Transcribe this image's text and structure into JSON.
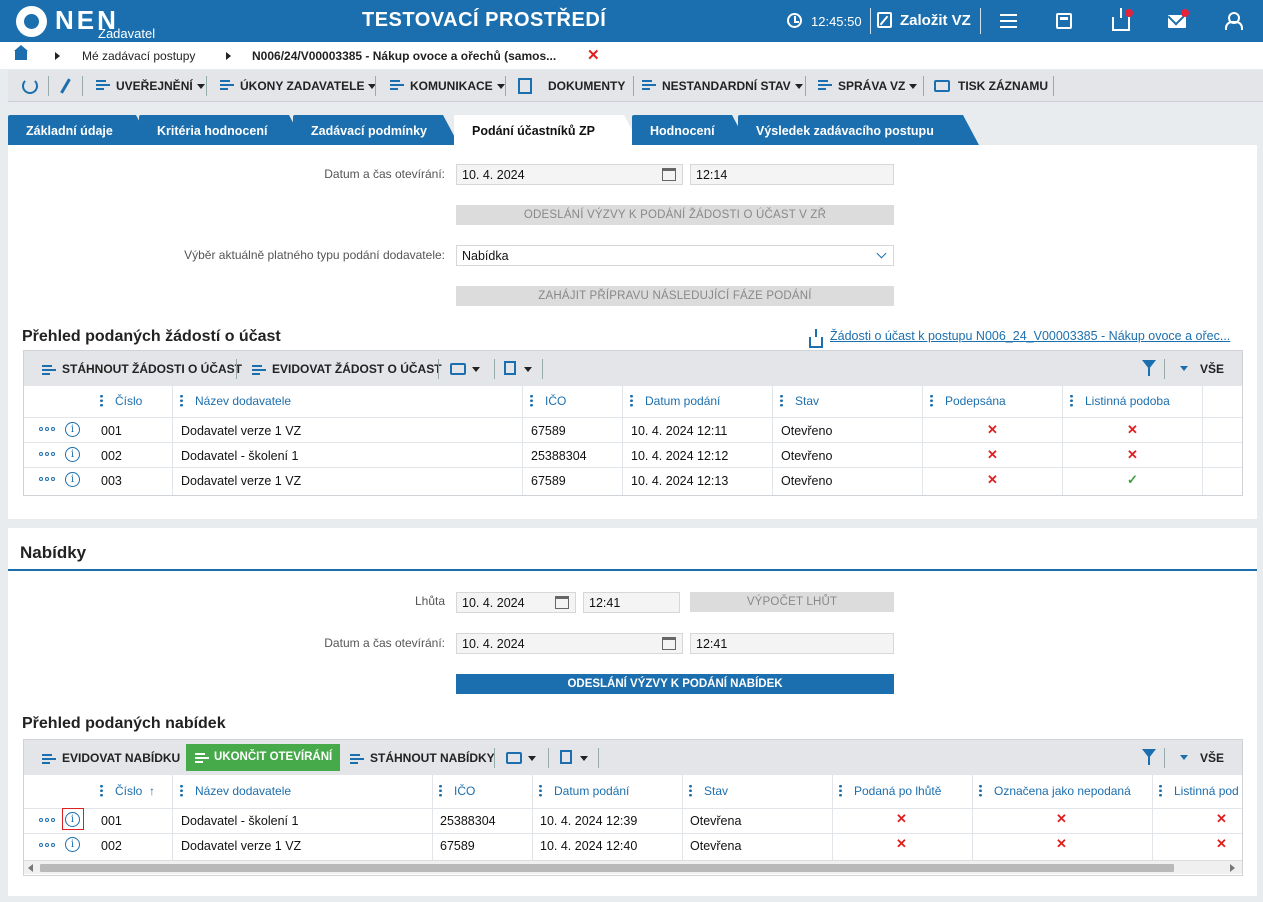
{
  "topbar": {
    "logo_text": "NEN",
    "logo_sub": "Zadavatel",
    "environment": "TESTOVACÍ PROSTŘEDÍ",
    "clock": "12:45:50",
    "create_label": "Založit VZ",
    "accent": "#1c6fae"
  },
  "breadcrumb": {
    "items": [
      "Mé zadávací postupy",
      "N006/24/V00003385 - Nákup ovoce a ořechů (samos..."
    ]
  },
  "actionbar": {
    "items": [
      "UVEŘEJNĚNÍ",
      "ÚKONY ZADAVATELE",
      "KOMUNIKACE",
      "DOKUMENTY",
      "NESTANDARDNÍ STAV",
      "SPRÁVA VZ",
      "TISK ZÁZNAMU"
    ]
  },
  "tabs": [
    "Základní údaje",
    "Kritéria hodnocení",
    "Zadávací podmínky",
    "Podání účastníků ZP",
    "Hodnocení",
    "Výsledek zadávacího postupu"
  ],
  "section1": {
    "open_label": "Datum a čas otevírání:",
    "open_date": "10. 4. 2024",
    "open_time": "12:14",
    "btn_send_invite": "ODESLÁNÍ VÝZVY K PODÁNÍ ŽÁDOSTI O ÚČAST V ZŘ",
    "type_label": "Výběr aktuálně platného typu podání dodavatele:",
    "type_value": "Nabídka",
    "btn_next_phase": "ZAHÁJIT PŘÍPRAVU NÁSLEDUJÍCÍ FÁZE PODÁNÍ",
    "title": "Přehled podaných žádostí o účast",
    "link": "Žádosti o účast k postupu N006_24_V00003385 - Nákup ovoce a ořec...",
    "toolbar": {
      "download": "STÁHNOUT ŽÁDOSTI O ÚČAST",
      "register": "EVIDOVAT ŽÁDOST O ÚČAST",
      "all": "VŠE"
    },
    "columns": [
      "Číslo",
      "Název dodavatele",
      "IČO",
      "Datum podání",
      "Stav",
      "Podepsána",
      "Listinná podoba"
    ],
    "rows": [
      {
        "cislo": "001",
        "nazev": "Dodavatel verze 1 VZ",
        "ico": "67589",
        "datum": "10. 4. 2024 12:11",
        "stav": "Otevřeno",
        "podepsana": "✕",
        "listinna": "✕"
      },
      {
        "cislo": "002",
        "nazev": "Dodavatel - školení 1",
        "ico": "25388304",
        "datum": "10. 4. 2024 12:12",
        "stav": "Otevřeno",
        "podepsana": "✕",
        "listinna": "✕"
      },
      {
        "cislo": "003",
        "nazev": "Dodavatel verze 1 VZ",
        "ico": "67589",
        "datum": "10. 4. 2024 12:13",
        "stav": "Otevřeno",
        "podepsana": "✕",
        "listinna": "✓"
      }
    ]
  },
  "section2": {
    "heading": "Nabídky",
    "deadline_label": "Lhůta",
    "deadline_date": "10. 4. 2024",
    "deadline_time": "12:41",
    "btn_calc": "VÝPOČET LHŮT",
    "open_label": "Datum a čas otevírání:",
    "open_date": "10. 4. 2024",
    "open_time": "12:41",
    "btn_send": "ODESLÁNÍ VÝZVY K PODÁNÍ NABÍDEK",
    "title": "Přehled podaných nabídek",
    "toolbar": {
      "register": "EVIDOVAT NABÍDKU",
      "finish": "UKONČIT OTEVÍRÁNÍ",
      "download": "STÁHNOUT NABÍDKY",
      "all": "VŠE"
    },
    "columns": [
      "Číslo",
      "Název dodavatele",
      "IČO",
      "Datum podání",
      "Stav",
      "Podaná po lhůtě",
      "Označena jako nepodaná",
      "Listinná pod"
    ],
    "sort_indicator": "↑",
    "rows": [
      {
        "cislo": "001",
        "nazev": "Dodavatel - školení 1",
        "ico": "25388304",
        "datum": "10. 4. 2024 12:39",
        "stav": "Otevřena",
        "po_lhute": "✕",
        "nepodana": "✕",
        "listinna": "✕"
      },
      {
        "cislo": "002",
        "nazev": "Dodavatel verze 1 VZ",
        "ico": "67589",
        "datum": "10. 4. 2024 12:40",
        "stav": "Otevřena",
        "po_lhute": "✕",
        "nepodana": "✕",
        "listinna": "✕"
      }
    ]
  }
}
